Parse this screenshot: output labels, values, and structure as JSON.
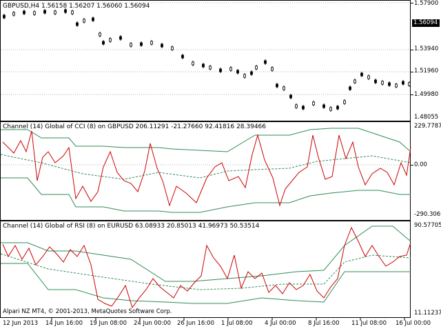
{
  "main": {
    "title": "GBPUSD,H4  1.56158 1.56207 1.56060 1.56094",
    "current_price": "1.56094",
    "scale": [
      "1.57900",
      "1.53940",
      "1.51960",
      "1.49980",
      "1.48055"
    ]
  },
  "cci": {
    "title": "Channel (14) Global of CCI (8) on GBPUSD 206.11291 -21.27660 92.41816 28.39466",
    "scale": [
      "229.7787",
      "0.00",
      "-290.3069"
    ]
  },
  "rsi": {
    "title": "Channel (14) Global of RSI (8) on EURUSD 63.08933 20.85013 41.96973 50.53514",
    "scale": [
      "90.57705",
      "11.11237"
    ]
  },
  "footer": "Alpari NZ MT4, © 2001-2013, MetaQuotes Software Corp.",
  "time_axis": [
    "12 Jun 2013",
    "14 Jun 16:00",
    "19 Jun 08:00",
    "24 Jun 00:00",
    "26 Jun 16:00",
    "1 Jul 08:00",
    "4 Jul 00:00",
    "8 Jul 16:00",
    "11 Jul 08:00",
    "16 Jul 00:00"
  ],
  "colors": {
    "candle": "#000000",
    "channel": "#2e8b57",
    "up": "#0000cc",
    "down": "#cc0000",
    "grid": "#b0b0b0"
  }
}
